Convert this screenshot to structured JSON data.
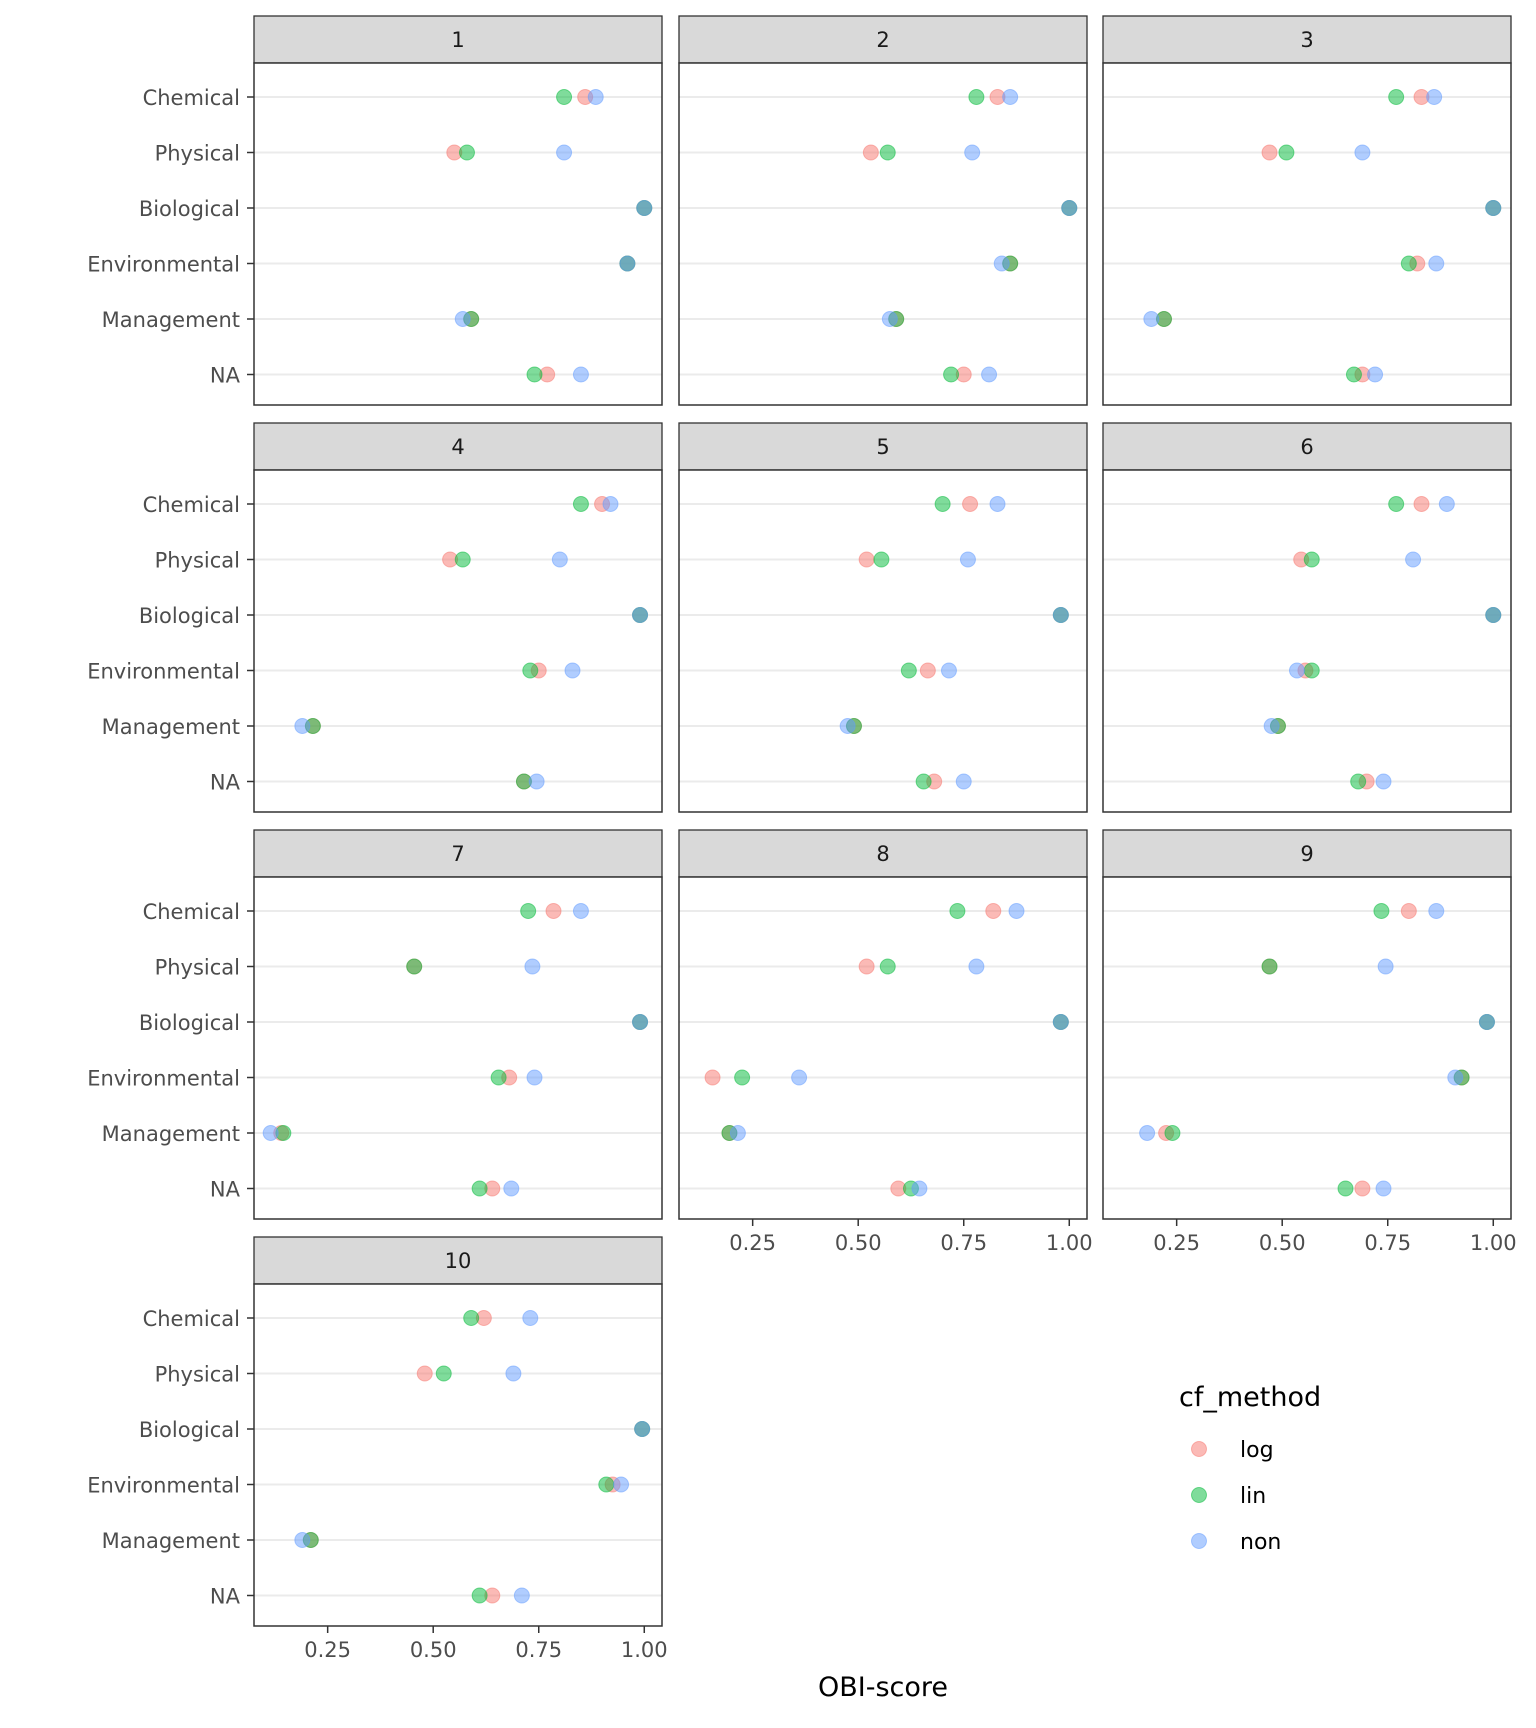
{
  "chart_data": {
    "type": "scatter",
    "title": "",
    "xlabel": "OBI-score",
    "ylabel": "",
    "xlim": [
      0.0755,
      1.042
    ],
    "x_ticks": [
      "0.25",
      "0.50",
      "0.75",
      "1.00"
    ],
    "x_tick_values": [
      0.25,
      0.5,
      0.75,
      1.0
    ],
    "categories": [
      "Chemical",
      "Physical",
      "Biological",
      "Environmental",
      "Management",
      "NA"
    ],
    "grid": "horizontal major lines",
    "legend": {
      "title": "cf_method",
      "placement": "right",
      "entries": [
        "log",
        "lin",
        "non"
      ]
    },
    "colors": {
      "log": "#F8766D",
      "lin": "#00BA38",
      "non": "#619CFF"
    },
    "facets": [
      {
        "label": "1",
        "log": [
          0.86,
          0.55,
          1.0,
          0.96,
          0.59,
          0.77
        ],
        "lin": [
          0.81,
          0.58,
          1.0,
          0.96,
          0.59,
          0.74
        ],
        "non": [
          0.885,
          0.81,
          1.0,
          0.96,
          0.57,
          0.85
        ]
      },
      {
        "label": "2",
        "log": [
          0.83,
          0.53,
          1.0,
          0.86,
          0.59,
          0.75
        ],
        "lin": [
          0.78,
          0.57,
          1.0,
          0.86,
          0.59,
          0.72
        ],
        "non": [
          0.86,
          0.77,
          1.0,
          0.84,
          0.575,
          0.81
        ]
      },
      {
        "label": "3",
        "log": [
          0.83,
          0.47,
          1.0,
          0.82,
          0.22,
          0.69
        ],
        "lin": [
          0.77,
          0.51,
          1.0,
          0.8,
          0.22,
          0.67
        ],
        "non": [
          0.86,
          0.69,
          1.0,
          0.865,
          0.19,
          0.72
        ]
      },
      {
        "label": "4",
        "log": [
          0.9,
          0.54,
          0.99,
          0.75,
          0.215,
          0.715
        ],
        "lin": [
          0.85,
          0.57,
          0.99,
          0.73,
          0.215,
          0.715
        ],
        "non": [
          0.92,
          0.8,
          0.99,
          0.83,
          0.19,
          0.745
        ]
      },
      {
        "label": "5",
        "log": [
          0.765,
          0.52,
          0.98,
          0.665,
          0.49,
          0.68
        ],
        "lin": [
          0.7,
          0.555,
          0.98,
          0.62,
          0.49,
          0.655
        ],
        "non": [
          0.83,
          0.76,
          0.98,
          0.715,
          0.475,
          0.75
        ]
      },
      {
        "label": "6",
        "log": [
          0.83,
          0.545,
          1.0,
          0.555,
          0.49,
          0.7
        ],
        "lin": [
          0.77,
          0.57,
          1.0,
          0.57,
          0.49,
          0.68
        ],
        "non": [
          0.89,
          0.81,
          1.0,
          0.535,
          0.475,
          0.74
        ]
      },
      {
        "label": "7",
        "log": [
          0.785,
          0.455,
          0.99,
          0.68,
          0.14,
          0.64
        ],
        "lin": [
          0.725,
          0.455,
          0.99,
          0.655,
          0.145,
          0.61
        ],
        "non": [
          0.85,
          0.735,
          0.99,
          0.74,
          0.115,
          0.685
        ]
      },
      {
        "label": "8",
        "log": [
          0.82,
          0.52,
          0.98,
          0.155,
          0.195,
          0.595
        ],
        "lin": [
          0.735,
          0.57,
          0.98,
          0.225,
          0.195,
          0.625
        ],
        "non": [
          0.875,
          0.78,
          0.98,
          0.36,
          0.215,
          0.645
        ]
      },
      {
        "label": "9",
        "log": [
          0.8,
          0.47,
          0.985,
          0.925,
          0.225,
          0.69
        ],
        "lin": [
          0.735,
          0.47,
          0.985,
          0.925,
          0.24,
          0.65
        ],
        "non": [
          0.865,
          0.745,
          0.985,
          0.91,
          0.18,
          0.74
        ]
      },
      {
        "label": "10",
        "log": [
          0.62,
          0.48,
          0.995,
          0.925,
          0.21,
          0.64
        ],
        "lin": [
          0.59,
          0.525,
          0.995,
          0.91,
          0.21,
          0.61
        ],
        "non": [
          0.73,
          0.69,
          0.995,
          0.945,
          0.19,
          0.71
        ]
      }
    ]
  }
}
